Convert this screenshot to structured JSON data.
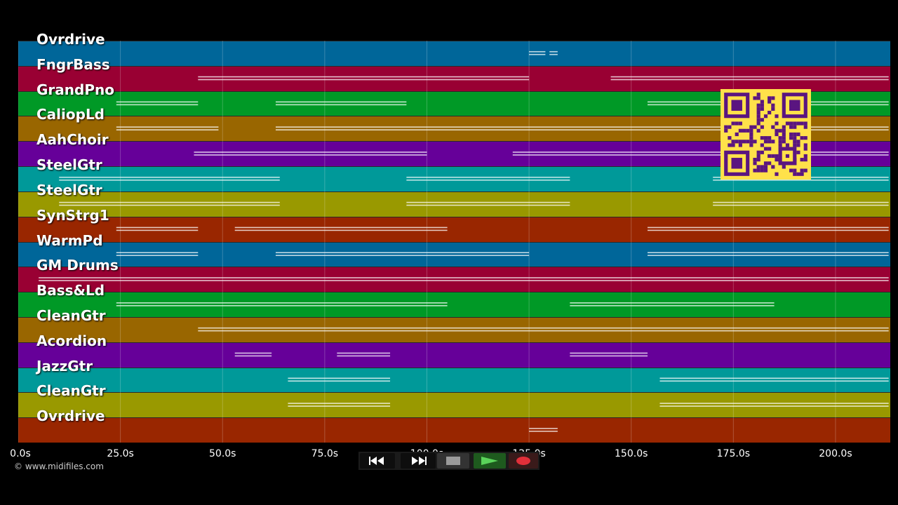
{
  "timeline": {
    "duration": 213.4,
    "ticks": [
      {
        "t": 0,
        "label": "0.0s"
      },
      {
        "t": 25,
        "label": "25.0s"
      },
      {
        "t": 50,
        "label": "50.0s"
      },
      {
        "t": 75,
        "label": "75.0s"
      },
      {
        "t": 100,
        "label": "100.0s"
      },
      {
        "t": 125,
        "label": "125.0s"
      },
      {
        "t": 150,
        "label": "150.0s"
      },
      {
        "t": 175,
        "label": "175.0s"
      },
      {
        "t": 200,
        "label": "200.0s"
      }
    ]
  },
  "tracks": [
    {
      "name": "Ovrdrive",
      "color": "#006699"
    },
    {
      "name": "FngrBass",
      "color": "#990033"
    },
    {
      "name": "GrandPno",
      "color": "#009926"
    },
    {
      "name": "CaliopLd",
      "color": "#996600"
    },
    {
      "name": "AahChoir",
      "color": "#660099"
    },
    {
      "name": "SteelGtr",
      "color": "#009999"
    },
    {
      "name": "SteelGtr",
      "color": "#999900"
    },
    {
      "name": "SynStrg1",
      "color": "#992600"
    },
    {
      "name": "WarmPd",
      "color": "#006699"
    },
    {
      "name": "GM Drums",
      "color": "#990033"
    },
    {
      "name": "Bass&Ld",
      "color": "#009926"
    },
    {
      "name": "CleanGtr",
      "color": "#996600"
    },
    {
      "name": "Acordion",
      "color": "#660099"
    },
    {
      "name": "JazzGtr",
      "color": "#009999"
    },
    {
      "name": "CleanGtr",
      "color": "#999900"
    },
    {
      "name": "Ovrdrive",
      "color": "#992600"
    }
  ],
  "credit": "© www.midifiles.com",
  "controls": {
    "rewind_icon": "rewind-icon",
    "forward_icon": "fast-forward-icon",
    "stop_icon": "stop-icon",
    "play_icon": "play-icon",
    "record_icon": "record-icon"
  },
  "qr_icon": "qr-code-icon"
}
